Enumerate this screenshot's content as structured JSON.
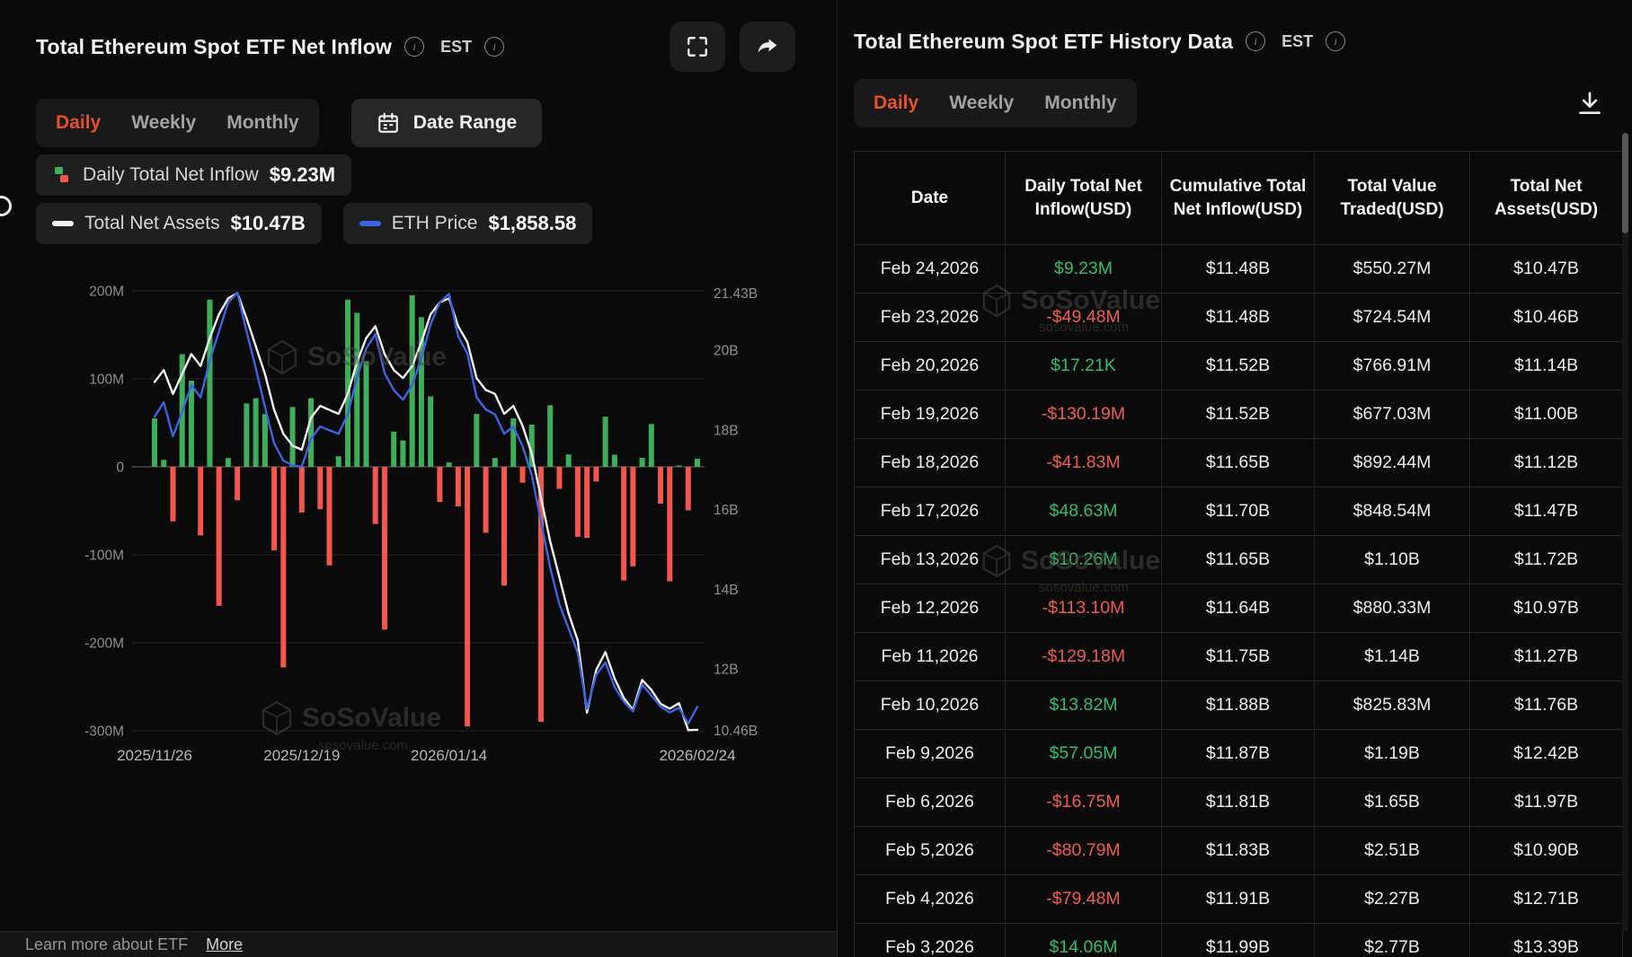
{
  "left_panel": {
    "title": "Total Ethereum Spot ETF Net Inflow",
    "est_label": "EST",
    "tabs": [
      {
        "label": "Daily",
        "active": true
      },
      {
        "label": "Weekly",
        "active": false
      },
      {
        "label": "Monthly",
        "active": false
      }
    ],
    "date_range_label": "Date Range",
    "legend": {
      "inflow_label": "Daily Total Net Inflow",
      "inflow_value": "$9.23M",
      "assets_label": "Total Net Assets",
      "assets_value": "$10.47B",
      "eth_label": "ETH Price",
      "eth_value": "$1,858.58"
    }
  },
  "chart_data": {
    "type": "bar",
    "title": "Total Ethereum Spot ETF Net Inflow",
    "x_tick_labels": [
      "2025/11/26",
      "2025/12/19",
      "2026/01/14",
      "2026/02/24"
    ],
    "x_tick_indices": [
      0,
      16,
      32,
      59
    ],
    "dates": [
      "2025/11/26",
      "2025/11/28",
      "2025/12/01",
      "2025/12/02",
      "2025/12/03",
      "2025/12/04",
      "2025/12/05",
      "2025/12/08",
      "2025/12/09",
      "2025/12/10",
      "2025/12/11",
      "2025/12/12",
      "2025/12/15",
      "2025/12/16",
      "2025/12/17",
      "2025/12/18",
      "2025/12/19",
      "2025/12/22",
      "2025/12/23",
      "2025/12/24",
      "2025/12/26",
      "2025/12/29",
      "2025/12/30",
      "2025/12/31",
      "2026/01/02",
      "2026/01/05",
      "2026/01/06",
      "2026/01/07",
      "2026/01/08",
      "2026/01/09",
      "2026/01/12",
      "2026/01/13",
      "2026/01/14",
      "2026/01/15",
      "2026/01/16",
      "2026/01/20",
      "2026/01/21",
      "2026/01/22",
      "2026/01/23",
      "2026/01/26",
      "2026/01/27",
      "2026/01/28",
      "2026/01/29",
      "2026/01/30",
      "2026/02/02",
      "2026/02/03",
      "2026/02/04",
      "2026/02/05",
      "2026/02/06",
      "2026/02/09",
      "2026/02/10",
      "2026/02/11",
      "2026/02/12",
      "2026/02/13",
      "2026/02/17",
      "2026/02/18",
      "2026/02/19",
      "2026/02/20",
      "2026/02/23",
      "2026/02/24"
    ],
    "left_axis": {
      "unit": "USD (millions)",
      "ticks": [
        200,
        100,
        0,
        -100,
        -200,
        -300
      ],
      "tick_labels": [
        "200M",
        "100M",
        "0",
        "-100M",
        "-200M",
        "-300M"
      ]
    },
    "right_axis": {
      "unit": "USD (billions)",
      "tick_values": [
        21.43,
        20,
        18,
        16,
        14,
        12,
        10.46
      ],
      "tick_labels": [
        "21.43B",
        "20B",
        "18B",
        "16B",
        "14B",
        "12B",
        "10.46B"
      ]
    },
    "series": [
      {
        "name": "Daily Total Net Inflow",
        "type": "bar",
        "unit": "M USD",
        "colors": {
          "pos": "#3fae5a",
          "neg": "#f2564d"
        },
        "values": [
          55,
          8,
          -62,
          128,
          98,
          -78,
          190,
          -158,
          10,
          -38,
          72,
          78,
          60,
          -95,
          -228,
          68,
          -52,
          78,
          -48,
          -112,
          12,
          190,
          175,
          120,
          -65,
          -185,
          40,
          30,
          195,
          170,
          80,
          -40,
          5,
          -45,
          -295,
          60,
          -75,
          10,
          -135,
          55,
          -18,
          48,
          -290,
          70,
          -25,
          14.06,
          -79.48,
          -80.79,
          -16.75,
          57.05,
          13.82,
          -129.18,
          -113.1,
          10.26,
          48.63,
          -41.83,
          -130.19,
          0.02,
          -49.48,
          9.23
        ]
      },
      {
        "name": "Total Net Assets",
        "type": "line",
        "unit": "B USD",
        "color": "#f2f2f2",
        "axis": "right",
        "values": [
          19.2,
          19.5,
          18.9,
          19.4,
          19.9,
          19.6,
          20.3,
          20.9,
          21.3,
          21.43,
          20.8,
          20.1,
          19.4,
          18.5,
          17.9,
          17.6,
          17.5,
          18.3,
          18.6,
          18.5,
          18.4,
          18.9,
          19.7,
          20.3,
          20.6,
          19.9,
          19.5,
          19.3,
          19.6,
          20.2,
          20.9,
          21.2,
          21.3,
          20.6,
          20.2,
          19.3,
          19.0,
          18.9,
          18.4,
          18.6,
          18.1,
          17.4,
          16.3,
          15.2,
          14.3,
          13.39,
          12.71,
          10.9,
          11.97,
          12.42,
          11.76,
          11.27,
          10.97,
          11.72,
          11.47,
          11.12,
          11.0,
          11.14,
          10.46,
          10.47
        ]
      },
      {
        "name": "ETH Price",
        "type": "line",
        "unit": "USD",
        "color": "#3e63e0",
        "range": [
          1760,
          3560
        ],
        "values": [
          3050,
          3110,
          2970,
          3070,
          3180,
          3130,
          3280,
          3400,
          3520,
          3560,
          3400,
          3250,
          3090,
          2940,
          2870,
          2850,
          2845,
          2960,
          3010,
          2995,
          2980,
          3060,
          3210,
          3330,
          3390,
          3230,
          3160,
          3120,
          3180,
          3290,
          3430,
          3520,
          3555,
          3380,
          3310,
          3130,
          3080,
          3060,
          2980,
          3010,
          2930,
          2810,
          2620,
          2430,
          2280,
          2180,
          2080,
          1850,
          1990,
          2040,
          1940,
          1880,
          1840,
          1950,
          1905,
          1860,
          1835,
          1855,
          1790,
          1858.58
        ]
      }
    ]
  },
  "right_panel": {
    "title": "Total Ethereum Spot ETF History Data",
    "est_label": "EST",
    "tabs": [
      {
        "label": "Daily",
        "active": true
      },
      {
        "label": "Weekly",
        "active": false
      },
      {
        "label": "Monthly",
        "active": false
      }
    ],
    "table": {
      "columns": [
        "Date",
        "Daily Total Net Inflow(USD)",
        "Cumulative Total Net Inflow(USD)",
        "Total Value Traded(USD)",
        "Total Net Assets(USD)"
      ],
      "rows": [
        {
          "date": "Feb 24,2026",
          "inflow": "$9.23M",
          "dir": "pos",
          "cumulative": "$11.48B",
          "traded": "$550.27M",
          "assets": "$10.47B"
        },
        {
          "date": "Feb 23,2026",
          "inflow": "-$49.48M",
          "dir": "neg",
          "cumulative": "$11.48B",
          "traded": "$724.54M",
          "assets": "$10.46B"
        },
        {
          "date": "Feb 20,2026",
          "inflow": "$17.21K",
          "dir": "pos",
          "cumulative": "$11.52B",
          "traded": "$766.91M",
          "assets": "$11.14B"
        },
        {
          "date": "Feb 19,2026",
          "inflow": "-$130.19M",
          "dir": "neg",
          "cumulative": "$11.52B",
          "traded": "$677.03M",
          "assets": "$11.00B"
        },
        {
          "date": "Feb 18,2026",
          "inflow": "-$41.83M",
          "dir": "neg",
          "cumulative": "$11.65B",
          "traded": "$892.44M",
          "assets": "$11.12B"
        },
        {
          "date": "Feb 17,2026",
          "inflow": "$48.63M",
          "dir": "pos",
          "cumulative": "$11.70B",
          "traded": "$848.54M",
          "assets": "$11.47B"
        },
        {
          "date": "Feb 13,2026",
          "inflow": "$10.26M",
          "dir": "pos",
          "cumulative": "$11.65B",
          "traded": "$1.10B",
          "assets": "$11.72B"
        },
        {
          "date": "Feb 12,2026",
          "inflow": "-$113.10M",
          "dir": "neg",
          "cumulative": "$11.64B",
          "traded": "$880.33M",
          "assets": "$10.97B"
        },
        {
          "date": "Feb 11,2026",
          "inflow": "-$129.18M",
          "dir": "neg",
          "cumulative": "$11.75B",
          "traded": "$1.14B",
          "assets": "$11.27B"
        },
        {
          "date": "Feb 10,2026",
          "inflow": "$13.82M",
          "dir": "pos",
          "cumulative": "$11.88B",
          "traded": "$825.83M",
          "assets": "$11.76B"
        },
        {
          "date": "Feb 9,2026",
          "inflow": "$57.05M",
          "dir": "pos",
          "cumulative": "$11.87B",
          "traded": "$1.19B",
          "assets": "$12.42B"
        },
        {
          "date": "Feb 6,2026",
          "inflow": "-$16.75M",
          "dir": "neg",
          "cumulative": "$11.81B",
          "traded": "$1.65B",
          "assets": "$11.97B"
        },
        {
          "date": "Feb 5,2026",
          "inflow": "-$80.79M",
          "dir": "neg",
          "cumulative": "$11.83B",
          "traded": "$2.51B",
          "assets": "$10.90B"
        },
        {
          "date": "Feb 4,2026",
          "inflow": "-$79.48M",
          "dir": "neg",
          "cumulative": "$11.91B",
          "traded": "$2.27B",
          "assets": "$12.71B"
        },
        {
          "date": "Feb 3,2026",
          "inflow": "$14.06M",
          "dir": "pos",
          "cumulative": "$11.99B",
          "traded": "$2.77B",
          "assets": "$13.39B"
        }
      ]
    }
  },
  "footer": {
    "text": "Learn more about ETF",
    "link": "More"
  },
  "watermark": {
    "brand": "SoSoValue",
    "domain": "sosovalue.com"
  },
  "colors": {
    "accent_orange": "#e8502a",
    "table_green": "#2ebd6b",
    "table_red": "#f05b4e",
    "bar_green": "#3fae5a",
    "bar_red": "#f2564d",
    "line_blue": "#3e63e0",
    "line_white": "#f2f2f2",
    "background": "#0a0a0a"
  }
}
